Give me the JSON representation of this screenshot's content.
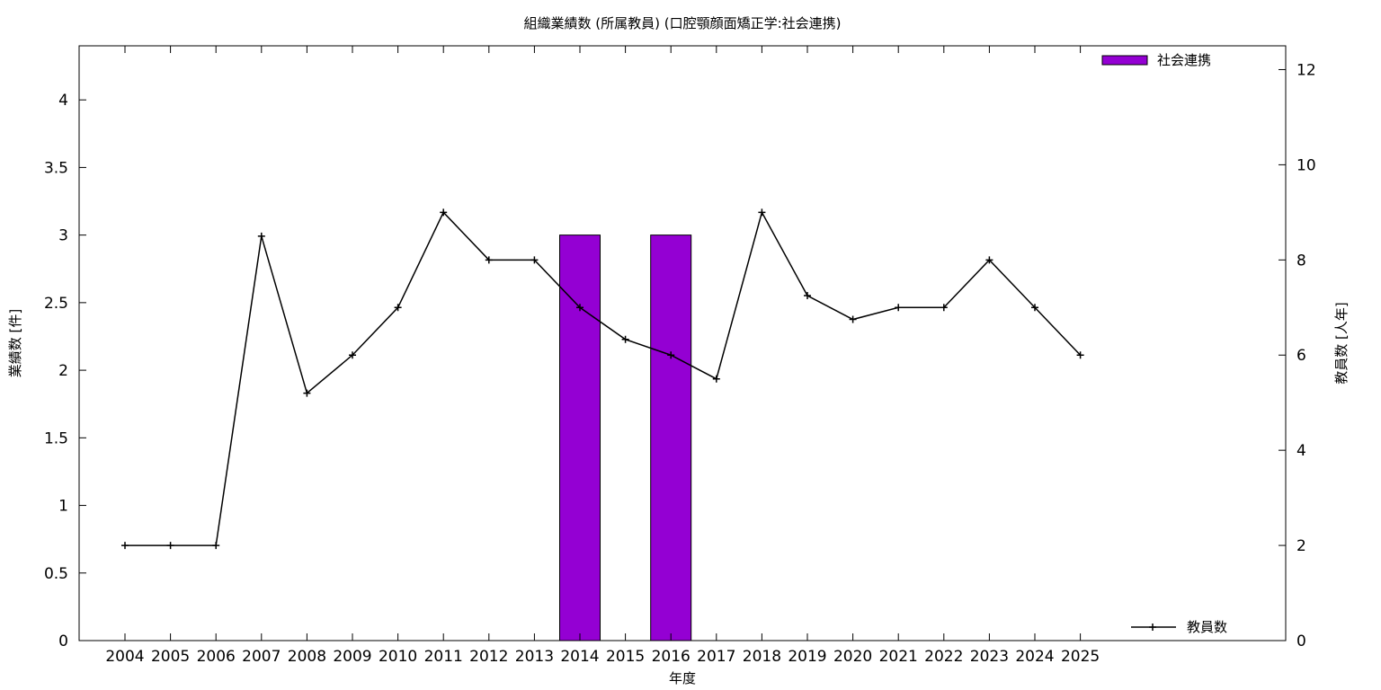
{
  "chart_data": {
    "type": "bar",
    "title": "組織業績数 (所属教員) (口腔顎顔面矯正学:社会連携)",
    "xlabel": "年度",
    "ylabel": "業績数 [件]",
    "y2label": "教員数 [人年]",
    "categories": [
      "2004",
      "2005",
      "2006",
      "2007",
      "2008",
      "2009",
      "2010",
      "2011",
      "2012",
      "2013",
      "2014",
      "2015",
      "2016",
      "2017",
      "2018",
      "2019",
      "2020",
      "2021",
      "2022",
      "2023",
      "2024",
      "2025"
    ],
    "ylim": [
      0,
      4.4
    ],
    "y2lim": [
      0,
      12.5
    ],
    "yticks": [
      "0",
      "0.5",
      "1",
      "1.5",
      "2",
      "2.5",
      "3",
      "3.5",
      "4"
    ],
    "y2ticks": [
      "0",
      "2",
      "4",
      "6",
      "8",
      "10",
      "12"
    ],
    "grid": false,
    "series": [
      {
        "name": "社会連携",
        "kind": "bar",
        "axis": "left",
        "color": "#9400d3",
        "values": [
          0,
          0,
          0,
          0,
          0,
          0,
          0,
          0,
          0,
          0,
          3,
          0,
          3,
          0,
          0,
          0,
          0,
          0,
          0,
          0,
          0,
          0
        ]
      },
      {
        "name": "教員数",
        "kind": "line",
        "axis": "right",
        "color": "#000000",
        "values": [
          2,
          2,
          2,
          8.5,
          5.2,
          6,
          7,
          9,
          8,
          8,
          7,
          6.33,
          6,
          5.5,
          9,
          7.25,
          6.75,
          7,
          7,
          8,
          7,
          6
        ]
      }
    ],
    "legend": [
      {
        "label": "社会連携",
        "placement": "top-right"
      },
      {
        "label": "教員数",
        "placement": "bottom-right"
      }
    ]
  }
}
